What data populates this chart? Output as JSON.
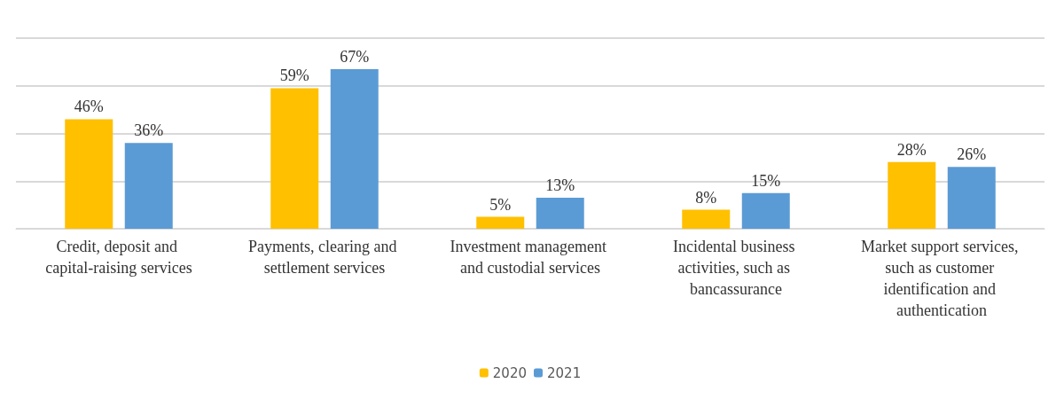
{
  "chart_data": {
    "type": "bar",
    "categories": [
      "Credit, deposit and capital-raising services",
      "Payments, clearing and settlement services",
      "Investment management and custodial services",
      "Incidental business activities, such as bancassurance",
      "Market support services, such as customer identification and authentication"
    ],
    "series": [
      {
        "name": "2020",
        "color": "#ffc000",
        "values": [
          46,
          59,
          5,
          8,
          28
        ],
        "value_labels": [
          "46%",
          "59%",
          "5%",
          "8%",
          "28%"
        ]
      },
      {
        "name": "2021",
        "color": "#5b9bd5",
        "values": [
          36,
          67,
          13,
          15,
          26
        ],
        "value_labels": [
          "36%",
          "67%",
          "13%",
          "15%",
          "26%"
        ]
      }
    ],
    "tick_labels": "x",
    "grid": "y",
    "legend": "bottom"
  }
}
